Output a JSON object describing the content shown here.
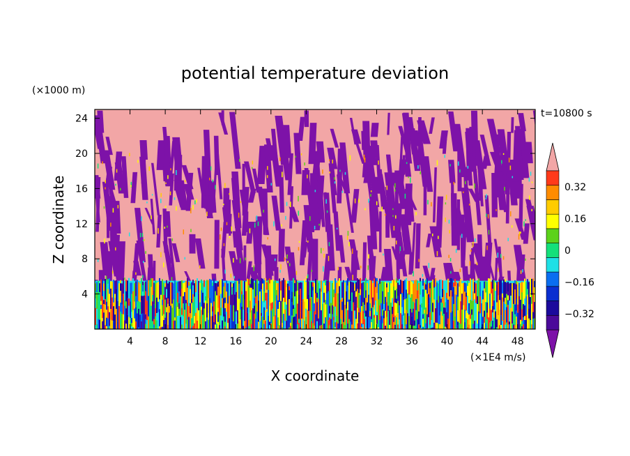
{
  "chart_data": {
    "type": "heatmap",
    "title": "potential temperature deviation",
    "xlabel": "X coordinate",
    "ylabel": "Z coordinate",
    "x_unit": "(×1E4 m/s)",
    "y_unit": "(×1000 m)",
    "time_label": "t=10800 s",
    "xlim": [
      0,
      50
    ],
    "ylim": [
      0,
      25
    ],
    "x_ticks": [
      4,
      8,
      12,
      16,
      20,
      24,
      28,
      32,
      36,
      40,
      44,
      48
    ],
    "y_ticks": [
      4,
      8,
      12,
      16,
      20,
      24
    ],
    "colorbar": {
      "levels": [
        -0.4,
        -0.32,
        -0.24,
        -0.16,
        -0.08,
        0,
        0.08,
        0.16,
        0.24,
        0.32,
        0.4
      ],
      "tick_labels": [
        "0.32",
        "0.16",
        "0",
        "−0.16",
        "−0.32"
      ],
      "tick_values": [
        0.32,
        0.16,
        0,
        -0.16,
        -0.32
      ],
      "colors": [
        "#4b0a9a",
        "#1b0a9c",
        "#0a2fd0",
        "#0a6ef0",
        "#1ee0e6",
        "#14e07a",
        "#5cd21a",
        "#ffff00",
        "#ffcc00",
        "#ff8c00",
        "#ff3a1a"
      ],
      "extend_low_color": "#7d12a8",
      "extend_high_color": "#f2a6a6"
    },
    "description_fields": {
      "upper_region_colors": [
        "#f2a6a6",
        "#7d12a8"
      ],
      "lower_region_top_z": 5.5
    }
  }
}
